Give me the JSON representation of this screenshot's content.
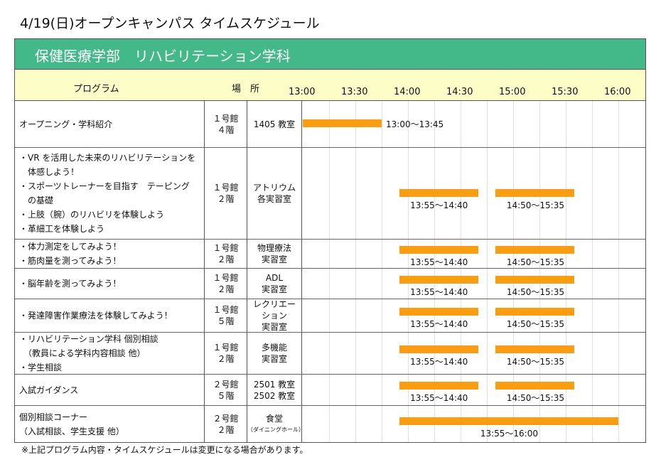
{
  "title": "4/19(日)オープンキャンパス タイムスケジュール",
  "banner": "保健医療学部　リハビリテーション学科",
  "header": {
    "program": "プログラム",
    "place": "場　所",
    "times": [
      "13:00",
      "13:30",
      "14:00",
      "14:30",
      "15:00",
      "15:30",
      "16:00"
    ]
  },
  "colors": {
    "banner": "#43b98a",
    "header": "#fdfdc8",
    "bar": "#f99d12"
  },
  "rows": [
    {
      "program": [
        "オープニング・学科紹介"
      ],
      "building": [
        "１号館",
        "４階"
      ],
      "room": [
        "1405 教室"
      ],
      "sessions": [
        {
          "start": "13:00",
          "end": "13:45",
          "label": "13:00～13:45"
        }
      ]
    },
    {
      "program": [
        "・VR を活用した未来のリハビリテーションを",
        "　体感しよう！",
        "・スポーツトレーナーを目指す　テーピング",
        "　の基礎",
        "・上肢（腕）のリハビリを体験しよう",
        "・革細工を体験しよう"
      ],
      "building": [
        "１号館",
        "２階"
      ],
      "room": [
        "アトリウム",
        "各実習室"
      ],
      "sessions": [
        {
          "start": "13:55",
          "end": "14:40",
          "label": "13:55～14:40"
        },
        {
          "start": "14:50",
          "end": "15:35",
          "label": "14:50～15:35"
        }
      ]
    },
    {
      "program": [
        "・体力測定をしてみよう！",
        "・筋肉量を測ってみよう！"
      ],
      "building": [
        "１号館",
        "２階"
      ],
      "room": [
        "物理療法",
        "実習室"
      ],
      "sessions": [
        {
          "start": "13:55",
          "end": "14:40",
          "label": "13:55～14:40"
        },
        {
          "start": "14:50",
          "end": "15:35",
          "label": "14:50～15:35"
        }
      ]
    },
    {
      "program": [
        "・脳年齢を測ってみよう！"
      ],
      "building": [
        "１号館",
        "２階"
      ],
      "room": [
        "ADL",
        "実習室"
      ],
      "sessions": [
        {
          "start": "13:55",
          "end": "14:40",
          "label": "13:55～14:40"
        },
        {
          "start": "14:50",
          "end": "15:35",
          "label": "14:50～15:35"
        }
      ]
    },
    {
      "program": [
        "・発達障害作業療法を体験してみよう！"
      ],
      "building": [
        "１号館",
        "５階"
      ],
      "room": [
        "レクリエー",
        "ション",
        "実習室"
      ],
      "sessions": [
        {
          "start": "13:55",
          "end": "14:40",
          "label": "13:55～14:40"
        },
        {
          "start": "14:50",
          "end": "15:35",
          "label": "14:50～15:35"
        }
      ]
    },
    {
      "program": [
        "・リハビリテーション学科  個別相談",
        "　（教員による学科内容相談  他）",
        "・学生相談"
      ],
      "building": [
        "１号館",
        "２階"
      ],
      "room": [
        "多機能",
        "実習室"
      ],
      "sessions": [
        {
          "start": "13:55",
          "end": "14:40",
          "label": "13:55～14:40"
        },
        {
          "start": "14:50",
          "end": "15:35",
          "label": "14:50～15:35"
        }
      ]
    },
    {
      "program": [
        "入試ガイダンス"
      ],
      "building": [
        "２号館",
        "５階"
      ],
      "room": [
        "2501 教室",
        "2502 教室"
      ],
      "sessions": [
        {
          "start": "13:55",
          "end": "14:40",
          "label": "13:55～14:40"
        },
        {
          "start": "14:50",
          "end": "15:35",
          "label": "14:50～15:35"
        }
      ]
    },
    {
      "program": [
        "個別相談コーナー",
        "（入試相談、学生支援 他）"
      ],
      "building": [
        "２号館",
        "２階"
      ],
      "room": [
        "食堂",
        "（ダイニングホール）"
      ],
      "sessions": [
        {
          "start": "13:55",
          "end": "16:00",
          "label": "13:55～16:00"
        }
      ]
    }
  ],
  "note": "※上記プログラム内容・タイムスケジュールは変更になる場合があります。"
}
